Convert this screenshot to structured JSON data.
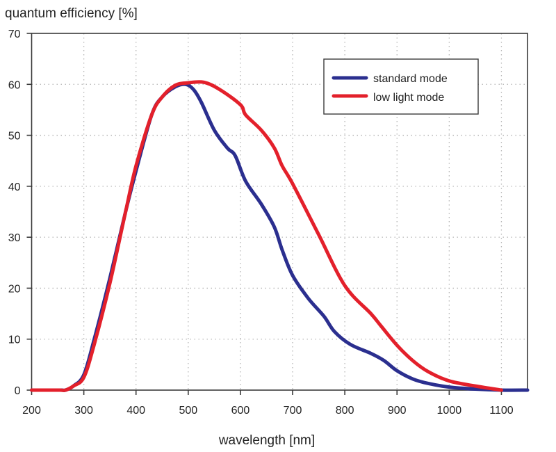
{
  "chart_data": {
    "type": "line",
    "title": "",
    "ylabel": "quantum efficiency [%]",
    "xlabel": "wavelength [nm]",
    "xlim": [
      200,
      1150
    ],
    "ylim": [
      0,
      70
    ],
    "xticks": [
      200,
      300,
      400,
      500,
      600,
      700,
      800,
      900,
      1000,
      1100
    ],
    "yticks": [
      0,
      10,
      20,
      30,
      40,
      50,
      60,
      70
    ],
    "grid": true,
    "legend_position": "top-right",
    "series": [
      {
        "name": "standard mode",
        "color": "#2b2f8f",
        "x": [
          200,
          250,
          258,
          265,
          280,
          300,
          320,
          350,
          380,
          400,
          430,
          450,
          475,
          495,
          510,
          525,
          550,
          575,
          590,
          610,
          640,
          665,
          680,
          700,
          730,
          760,
          780,
          810,
          850,
          875,
          900,
          930,
          960,
          1000,
          1050,
          1100,
          1150
        ],
        "y": [
          0,
          0,
          0,
          0,
          0.8,
          3,
          10,
          22,
          35,
          43,
          54,
          57.5,
          59.5,
          60,
          59,
          56.5,
          51,
          47.5,
          46,
          41,
          36.5,
          32,
          27.5,
          22.5,
          18,
          14.5,
          11.5,
          9,
          7.2,
          5.8,
          3.8,
          2.2,
          1.3,
          0.6,
          0.2,
          0,
          0
        ]
      },
      {
        "name": "low light mode",
        "color": "#e3202b",
        "x": [
          200,
          250,
          255,
          265,
          280,
          300,
          320,
          350,
          380,
          400,
          430,
          450,
          475,
          500,
          530,
          560,
          600,
          610,
          640,
          665,
          680,
          700,
          750,
          800,
          850,
          870,
          900,
          930,
          960,
          1000,
          1050,
          1100
        ],
        "y": [
          0,
          0,
          0,
          0,
          0.8,
          2.5,
          9,
          21,
          35,
          44,
          54,
          57.5,
          59.8,
          60.3,
          60.4,
          59,
          56,
          54,
          51,
          47.5,
          44,
          40.5,
          30.5,
          20.5,
          15,
          12.5,
          8.8,
          5.8,
          3.6,
          1.8,
          0.8,
          0
        ]
      }
    ]
  }
}
